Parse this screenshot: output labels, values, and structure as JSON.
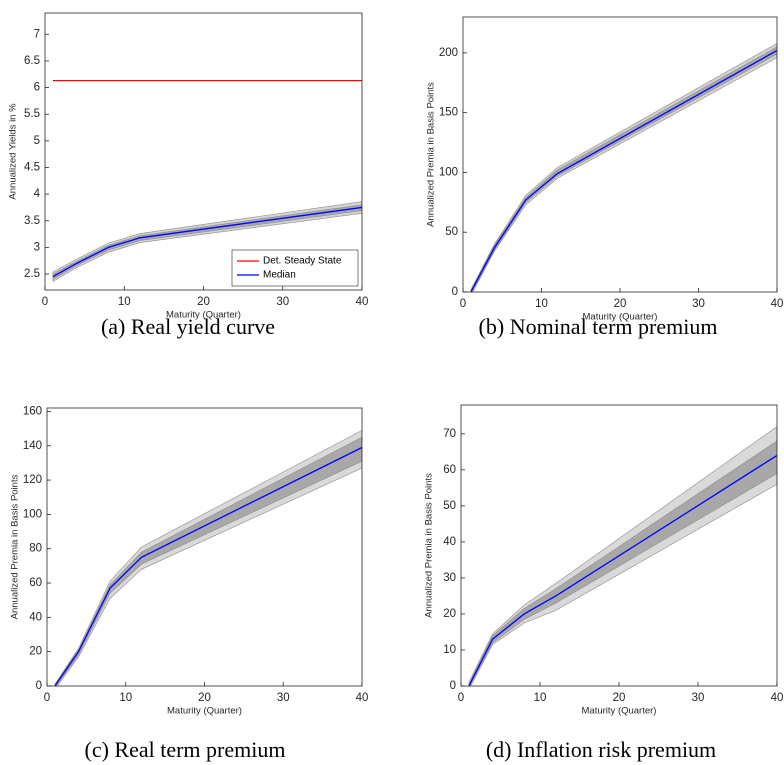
{
  "chart_data": [
    {
      "type": "line",
      "caption": "(a) Real yield curve",
      "xlabel": "Maturity (Quarter)",
      "ylabel": "Annualized Yields in %",
      "x": [
        1,
        4,
        8,
        12,
        40
      ],
      "xlim": [
        0,
        40
      ],
      "xticks": [
        0,
        10,
        20,
        30,
        40
      ],
      "ylim": [
        2.2,
        7.4
      ],
      "yticks": [
        2.5,
        3,
        3.5,
        4,
        4.5,
        5,
        5.5,
        6,
        6.5,
        7
      ],
      "legend": "lower right",
      "bands": [
        {
          "color": "#d4d4d4",
          "lower": [
            2.36,
            2.62,
            2.91,
            3.09,
            3.64
          ],
          "upper": [
            2.54,
            2.78,
            3.08,
            3.26,
            3.86
          ]
        },
        {
          "color": "#a8a8a8",
          "lower": [
            2.4,
            2.66,
            2.95,
            3.13,
            3.69
          ],
          "upper": [
            2.5,
            2.74,
            3.04,
            3.22,
            3.8
          ]
        }
      ],
      "series": [
        {
          "name": "Det. Steady State",
          "color": "#ff0000",
          "values": [
            6.13,
            6.13,
            6.13,
            6.13,
            6.13
          ]
        },
        {
          "name": "Median",
          "color": "#0000ff",
          "values": [
            2.45,
            2.7,
            3.0,
            3.18,
            3.75
          ]
        }
      ]
    },
    {
      "type": "line",
      "caption": "(b) Nominal term premium",
      "xlabel": "Maturity (Quarter)",
      "ylabel": "Annualized Premia in Basis Points",
      "x": [
        1,
        4,
        8,
        12,
        40
      ],
      "xlim": [
        0,
        40
      ],
      "xticks": [
        0,
        10,
        20,
        30,
        40
      ],
      "ylim": [
        0,
        230
      ],
      "yticks": [
        0,
        50,
        100,
        150,
        200
      ],
      "bands": [
        {
          "color": "#d4d4d4",
          "lower": [
            -3,
            34,
            73,
            95,
            196
          ],
          "upper": [
            2,
            40,
            81,
            104,
            208
          ]
        },
        {
          "color": "#a8a8a8",
          "lower": [
            -2,
            35,
            75,
            97,
            199
          ],
          "upper": [
            1,
            39,
            79,
            102,
            205
          ]
        }
      ],
      "series": [
        {
          "name": "Median",
          "color": "#0000ff",
          "values": [
            0,
            37,
            77,
            99,
            202
          ]
        }
      ]
    },
    {
      "type": "line",
      "caption": "(c) Real term premium",
      "xlabel": "Maturity (Quarter)",
      "ylabel": "Annualized Premia in Basis Points",
      "x": [
        1,
        4,
        8,
        12,
        40
      ],
      "xlim": [
        0,
        40
      ],
      "xticks": [
        0,
        10,
        20,
        30,
        40
      ],
      "ylim": [
        0,
        162
      ],
      "yticks": [
        0,
        20,
        40,
        60,
        80,
        100,
        120,
        140,
        160
      ],
      "bands": [
        {
          "color": "#d9d9d9",
          "lower": [
            -2,
            17,
            51,
            68,
            127
          ],
          "upper": [
            1,
            22,
            61,
            81,
            149
          ]
        },
        {
          "color": "#a8a8a8",
          "lower": [
            -1,
            18,
            54,
            71,
            131
          ],
          "upper": [
            1,
            21,
            59,
            78,
            145
          ]
        }
      ],
      "series": [
        {
          "name": "Median",
          "color": "#0000ff",
          "values": [
            0,
            20,
            57,
            75,
            139
          ]
        }
      ]
    },
    {
      "type": "line",
      "caption": "(d) Inflation risk premium",
      "xlabel": "Maturity (Quarter)",
      "ylabel": "Annualized Premia in Basis Points",
      "x": [
        1,
        4,
        8,
        12,
        40
      ],
      "xlim": [
        0,
        40
      ],
      "xticks": [
        0,
        10,
        20,
        30,
        40
      ],
      "ylim": [
        0,
        78
      ],
      "yticks": [
        0,
        10,
        20,
        30,
        40,
        50,
        60,
        70
      ],
      "bands": [
        {
          "color": "#d9d9d9",
          "lower": [
            -1,
            11.5,
            17.5,
            21,
            56
          ],
          "upper": [
            1,
            14.5,
            22.5,
            28.5,
            72
          ]
        },
        {
          "color": "#a8a8a8",
          "lower": [
            -0.5,
            12,
            18.5,
            23,
            59
          ],
          "upper": [
            0.5,
            14,
            21.5,
            27,
            68
          ]
        }
      ],
      "series": [
        {
          "name": "Median",
          "color": "#0000ff",
          "values": [
            0,
            13,
            20,
            25,
            64
          ]
        }
      ]
    }
  ]
}
